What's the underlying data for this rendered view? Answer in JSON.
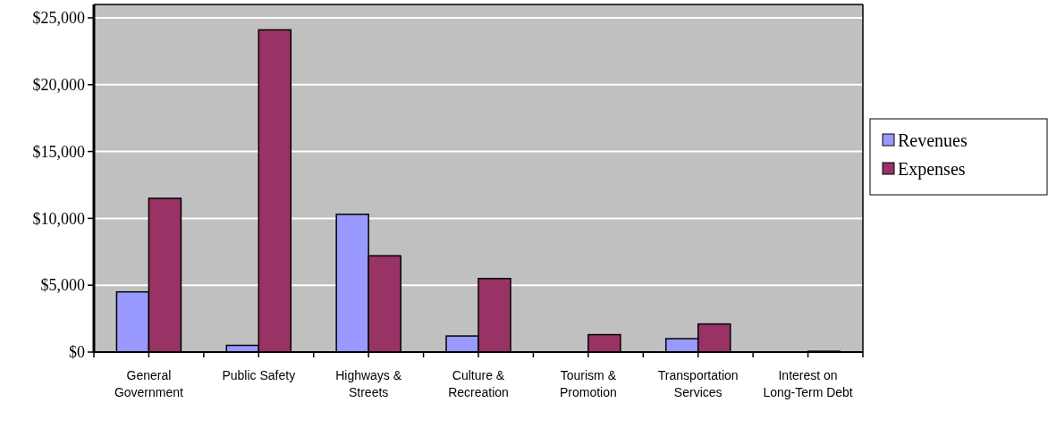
{
  "chart_data": {
    "type": "bar",
    "categories": [
      "General Government",
      "Public Safety",
      "Highways & Streets",
      "Culture & Recreation",
      "Tourism & Promotion",
      "Transportation Services",
      "Interest on Long-Term Debt"
    ],
    "series": [
      {
        "name": "Revenues",
        "color": "#9999ff",
        "values": [
          4500,
          500,
          10300,
          1200,
          0,
          1000,
          0
        ]
      },
      {
        "name": "Expenses",
        "color": "#993366",
        "values": [
          11500,
          24100,
          7200,
          5500,
          1300,
          2100,
          100
        ]
      }
    ],
    "ylim": [
      0,
      26000
    ],
    "yticks": [
      {
        "value": 0,
        "label": "$0"
      },
      {
        "value": 5000,
        "label": "$5,000"
      },
      {
        "value": 10000,
        "label": "$10,000"
      },
      {
        "value": 15000,
        "label": "$15,000"
      },
      {
        "value": 20000,
        "label": "$20,000"
      },
      {
        "value": 25000,
        "label": "$25,000"
      }
    ],
    "grid": "y",
    "legend": "right"
  }
}
